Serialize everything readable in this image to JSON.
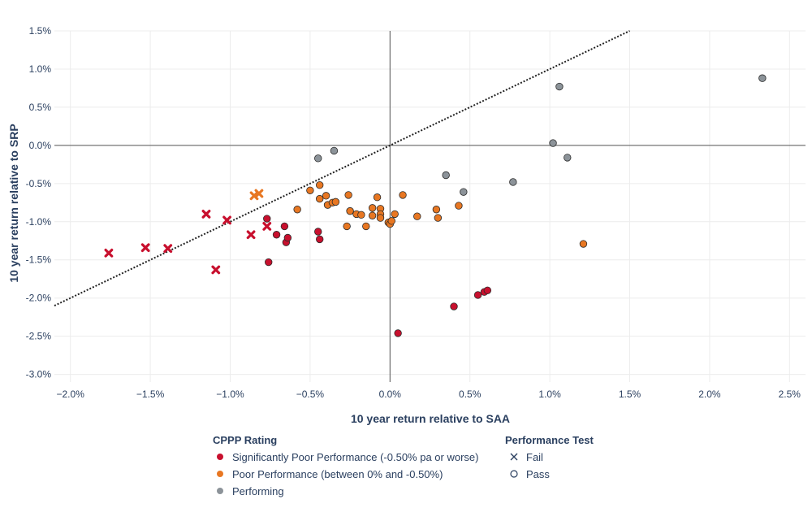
{
  "chart_data": {
    "type": "scatter",
    "xlabel": "10 year return relative to SAA",
    "ylabel": "10 year return relative to SRP",
    "xlim": [
      -2.1,
      2.6
    ],
    "ylim": [
      -3.1,
      1.5
    ],
    "x_ticks": [
      -2.0,
      -1.5,
      -1.0,
      -0.5,
      0.0,
      0.5,
      1.0,
      1.5,
      2.0,
      2.5
    ],
    "x_tick_labels": [
      "−2.0%",
      "−1.5%",
      "−1.0%",
      "−0.5%",
      "0.0%",
      "0.5%",
      "1.0%",
      "1.5%",
      "2.0%",
      "2.5%"
    ],
    "y_ticks": [
      1.5,
      1.0,
      0.5,
      0.0,
      -0.5,
      -1.0,
      -1.5,
      -2.0,
      -2.5,
      -3.0
    ],
    "y_tick_labels": [
      "1.5%",
      "1.0%",
      "0.5%",
      "0.0%",
      "-0.5%",
      "-1.0%",
      "-1.5%",
      "-2.0%",
      "-2.5%",
      "-3.0%"
    ],
    "grid": true,
    "reference_line": {
      "style": "dotted",
      "points": [
        [
          -2.1,
          -2.1
        ],
        [
          1.5,
          1.5
        ]
      ]
    },
    "legend": {
      "placement": "bottom",
      "groups": [
        {
          "title": "CPPP Rating",
          "items": [
            {
              "label": "Significantly Poor Performance (-0.50% pa or worse)",
              "color": "#c8102e"
            },
            {
              "label": "Poor Performance (between 0% and -0.50%)",
              "color": "#e87722"
            },
            {
              "label": "Performing",
              "color": "#8c9399"
            }
          ]
        },
        {
          "title": "Performance Test",
          "items": [
            {
              "label": "Fail",
              "symbol": "x-open"
            },
            {
              "label": "Pass",
              "symbol": "circle-open"
            }
          ]
        }
      ]
    },
    "series": [
      {
        "name": "Significantly Poor Performance (-0.50% pa or worse)",
        "color": "#c8102e",
        "points": [
          {
            "x": -1.76,
            "y": -1.41,
            "test": "Fail"
          },
          {
            "x": -1.53,
            "y": -1.34,
            "test": "Fail"
          },
          {
            "x": -1.39,
            "y": -1.35,
            "test": "Fail"
          },
          {
            "x": -1.15,
            "y": -0.9,
            "test": "Fail"
          },
          {
            "x": -1.09,
            "y": -1.63,
            "test": "Fail"
          },
          {
            "x": -1.02,
            "y": -0.98,
            "test": "Fail"
          },
          {
            "x": -0.87,
            "y": -1.17,
            "test": "Fail"
          },
          {
            "x": -0.77,
            "y": -1.06,
            "test": "Fail"
          },
          {
            "x": -0.77,
            "y": -0.96,
            "test": "Pass"
          },
          {
            "x": -0.76,
            "y": -1.53,
            "test": "Pass"
          },
          {
            "x": -0.71,
            "y": -1.17,
            "test": "Pass"
          },
          {
            "x": -0.66,
            "y": -1.06,
            "test": "Pass"
          },
          {
            "x": -0.65,
            "y": -1.27,
            "test": "Pass"
          },
          {
            "x": -0.64,
            "y": -1.21,
            "test": "Pass"
          },
          {
            "x": -0.45,
            "y": -1.13,
            "test": "Pass"
          },
          {
            "x": -0.44,
            "y": -1.23,
            "test": "Pass"
          },
          {
            "x": 0.05,
            "y": -2.46,
            "test": "Pass"
          },
          {
            "x": 0.4,
            "y": -2.11,
            "test": "Pass"
          },
          {
            "x": 0.55,
            "y": -1.96,
            "test": "Pass"
          },
          {
            "x": 0.59,
            "y": -1.92,
            "test": "Pass"
          },
          {
            "x": 0.61,
            "y": -1.9,
            "test": "Pass"
          }
        ]
      },
      {
        "name": "Poor Performance (between 0% and -0.50%)",
        "color": "#e87722",
        "points": [
          {
            "x": -0.85,
            "y": -0.66,
            "test": "Fail"
          },
          {
            "x": -0.82,
            "y": -0.63,
            "test": "Fail"
          },
          {
            "x": -0.58,
            "y": -0.84,
            "test": "Pass"
          },
          {
            "x": -0.5,
            "y": -0.59,
            "test": "Pass"
          },
          {
            "x": -0.44,
            "y": -0.52,
            "test": "Pass"
          },
          {
            "x": -0.44,
            "y": -0.7,
            "test": "Pass"
          },
          {
            "x": -0.4,
            "y": -0.66,
            "test": "Pass"
          },
          {
            "x": -0.39,
            "y": -0.78,
            "test": "Pass"
          },
          {
            "x": -0.36,
            "y": -0.75,
            "test": "Pass"
          },
          {
            "x": -0.34,
            "y": -0.74,
            "test": "Pass"
          },
          {
            "x": -0.27,
            "y": -1.06,
            "test": "Pass"
          },
          {
            "x": -0.26,
            "y": -0.65,
            "test": "Pass"
          },
          {
            "x": -0.25,
            "y": -0.86,
            "test": "Pass"
          },
          {
            "x": -0.21,
            "y": -0.9,
            "test": "Pass"
          },
          {
            "x": -0.18,
            "y": -0.91,
            "test": "Pass"
          },
          {
            "x": -0.15,
            "y": -1.06,
            "test": "Pass"
          },
          {
            "x": -0.11,
            "y": -0.82,
            "test": "Pass"
          },
          {
            "x": -0.11,
            "y": -0.92,
            "test": "Pass"
          },
          {
            "x": -0.08,
            "y": -0.68,
            "test": "Pass"
          },
          {
            "x": -0.06,
            "y": -0.83,
            "test": "Pass"
          },
          {
            "x": -0.06,
            "y": -0.9,
            "test": "Pass"
          },
          {
            "x": -0.06,
            "y": -0.95,
            "test": "Pass"
          },
          {
            "x": -0.01,
            "y": -1.01,
            "test": "Pass"
          },
          {
            "x": 0.0,
            "y": -1.03,
            "test": "Pass"
          },
          {
            "x": 0.01,
            "y": -0.99,
            "test": "Pass"
          },
          {
            "x": 0.03,
            "y": -0.9,
            "test": "Pass"
          },
          {
            "x": 0.08,
            "y": -0.65,
            "test": "Pass"
          },
          {
            "x": 0.17,
            "y": -0.93,
            "test": "Pass"
          },
          {
            "x": 0.29,
            "y": -0.84,
            "test": "Pass"
          },
          {
            "x": 0.3,
            "y": -0.95,
            "test": "Pass"
          },
          {
            "x": 0.43,
            "y": -0.79,
            "test": "Pass"
          },
          {
            "x": 1.21,
            "y": -1.29,
            "test": "Pass"
          }
        ]
      },
      {
        "name": "Performing",
        "color": "#8c9399",
        "points": [
          {
            "x": -0.45,
            "y": -0.17,
            "test": "Pass"
          },
          {
            "x": -0.35,
            "y": -0.07,
            "test": "Pass"
          },
          {
            "x": 0.35,
            "y": -0.39,
            "test": "Pass"
          },
          {
            "x": 0.46,
            "y": -0.61,
            "test": "Pass"
          },
          {
            "x": 0.77,
            "y": -0.48,
            "test": "Pass"
          },
          {
            "x": 1.02,
            "y": 0.03,
            "test": "Pass"
          },
          {
            "x": 1.06,
            "y": 0.77,
            "test": "Pass"
          },
          {
            "x": 1.11,
            "y": -0.16,
            "test": "Pass"
          },
          {
            "x": 2.33,
            "y": 0.88,
            "test": "Pass"
          }
        ]
      }
    ]
  }
}
